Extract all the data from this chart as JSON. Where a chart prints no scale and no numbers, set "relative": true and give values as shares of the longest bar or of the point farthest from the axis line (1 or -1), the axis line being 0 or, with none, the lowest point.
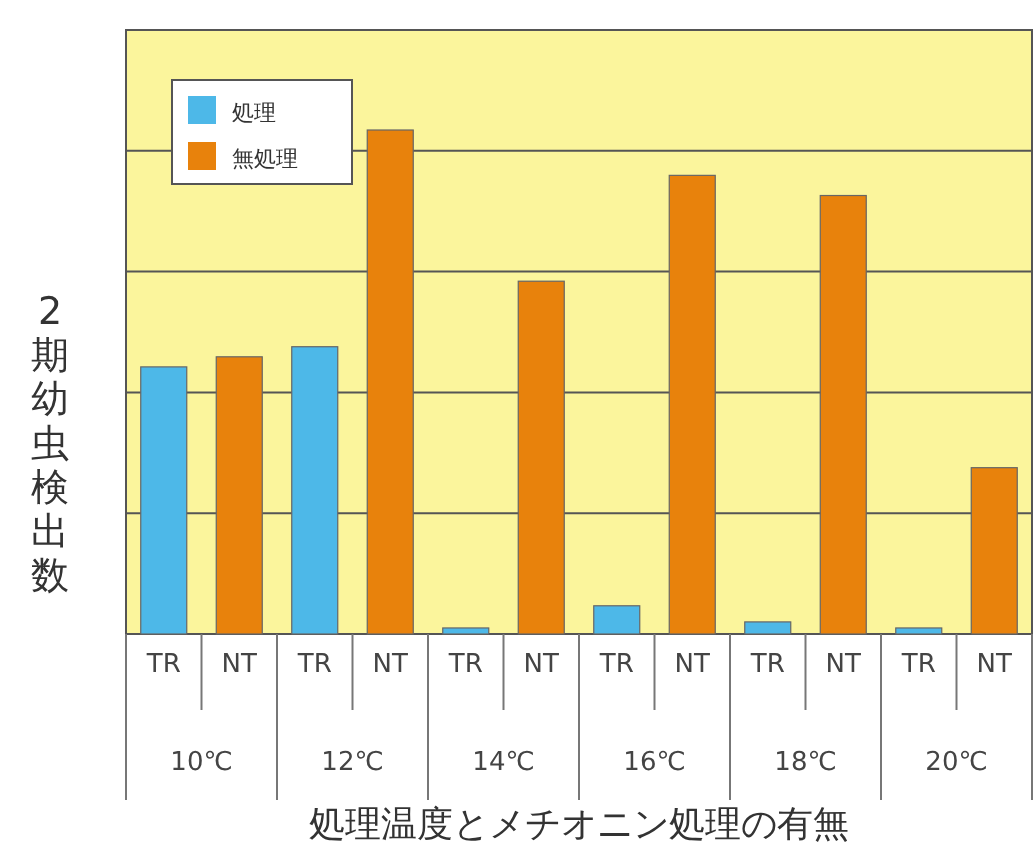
{
  "chart_data": {
    "type": "bar",
    "relative": true,
    "xlabel": "処理温度とメチオニン処理の有無",
    "ylabel": "2期幼虫検出数",
    "categories": [
      "10℃",
      "12℃",
      "14℃",
      "16℃",
      "18℃",
      "20℃"
    ],
    "series": [
      {
        "name": "処理",
        "color": "#4db8e8",
        "values": [
          0.53,
          0.57,
          0.012,
          0.056,
          0.024,
          0.012
        ]
      },
      {
        "name": "無処理",
        "color": "#e8820c",
        "values": [
          0.55,
          1,
          0.7,
          0.91,
          0.87,
          0.33
        ]
      }
    ],
    "annotations": [
      "TR",
      "NT",
      "TR",
      "NT",
      "TR",
      "NT",
      "TR",
      "NT",
      "TR",
      "NT",
      "TR",
      "NT"
    ],
    "grid": "y",
    "legend": "top left"
  }
}
